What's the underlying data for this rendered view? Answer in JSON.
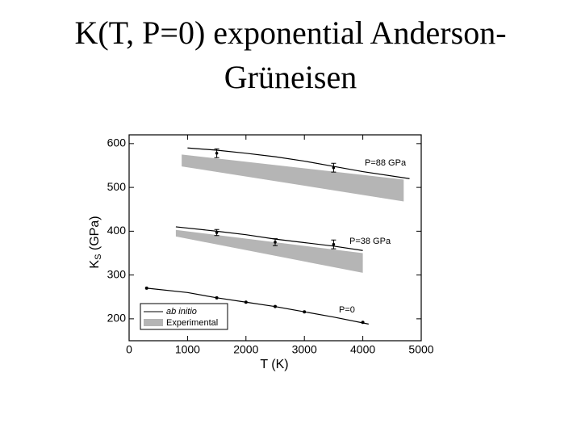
{
  "chart_data": {
    "type": "line",
    "title_lines": [
      "K(T, P=0) exponential Anderson-",
      "Grüneisen"
    ],
    "x_label": "T (K)",
    "y_label": {
      "main": "K",
      "sub": "S",
      "rest": " (GPa)"
    },
    "xlim": [
      0,
      5000
    ],
    "ylim": [
      150,
      620
    ],
    "xticks": [
      0,
      1000,
      2000,
      3000,
      4000,
      5000
    ],
    "yticks": [
      200,
      300,
      400,
      500,
      600
    ],
    "legend": [
      "ab initio",
      "Experimental"
    ],
    "band_color": "#b5b5b5",
    "line_color": "#000000",
    "lines": [
      {
        "label": "P=0",
        "x": [
          300,
          1000,
          1500,
          2000,
          2500,
          3000,
          3500,
          4100
        ],
        "values": [
          270,
          260,
          248,
          238,
          228,
          216,
          204,
          188
        ]
      },
      {
        "label": "P=38 GPa",
        "x": [
          800,
          1500,
          2000,
          2500,
          3000,
          3500,
          4000
        ],
        "values": [
          410,
          400,
          392,
          382,
          374,
          366,
          356
        ]
      },
      {
        "label": "P=88 GPa",
        "x": [
          1000,
          1500,
          2000,
          2500,
          3000,
          3500,
          4000,
          4800
        ],
        "values": [
          590,
          585,
          578,
          570,
          560,
          548,
          536,
          520
        ]
      }
    ],
    "dots": {
      "x": [
        300,
        1500,
        2000,
        2500,
        3000,
        4000
      ],
      "values": [
        270,
        248,
        238,
        228,
        216,
        192
      ]
    },
    "bands": [
      {
        "x": [
          800,
          4000
        ],
        "lower": [
          388,
          305
        ],
        "upper": [
          403,
          350
        ]
      },
      {
        "x": [
          900,
          4700
        ],
        "lower": [
          548,
          468
        ],
        "upper": [
          575,
          518
        ]
      }
    ],
    "points": {
      "x": [
        1500,
        2500,
        3500,
        1500,
        3500
      ],
      "values": [
        397,
        375,
        370,
        578,
        545
      ],
      "errors": [
        7,
        8,
        10,
        10,
        10
      ]
    }
  }
}
